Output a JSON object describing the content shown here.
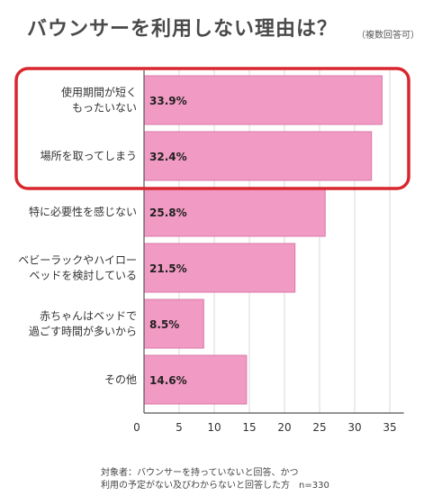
{
  "title": "バウンサーを利用しない理由は？",
  "subtitle": "（複数回答可）",
  "chart_data": {
    "type": "bar",
    "orientation": "horizontal",
    "categories": [
      [
        "使用期間が短く",
        "もったいない"
      ],
      [
        "場所を取ってしまう"
      ],
      [
        "特に必要性を感じない"
      ],
      [
        "ベビーラックやハイロー",
        "ベッドを検討している"
      ],
      [
        "赤ちゃんはベッドで",
        "過ごす時間が多いから"
      ],
      [
        "その他"
      ]
    ],
    "values": [
      33.9,
      32.4,
      25.8,
      21.5,
      8.5,
      14.6
    ],
    "value_labels": [
      "33.9%",
      "32.4%",
      "25.8%",
      "21.5%",
      "8.5%",
      "14.6%"
    ],
    "x_ticks": [
      "0",
      "5",
      "10",
      "15",
      "20",
      "25",
      "30",
      "35"
    ],
    "xlim": [
      0,
      37
    ],
    "grid": true,
    "bar_color": "#f19ac3",
    "bar_border_color": "#d97aa9",
    "highlight_color": "#d9262e",
    "highlighted_categories": [
      0,
      1
    ]
  },
  "footnote": {
    "line1": "対象者：バウンサーを持っていないと回答、かつ",
    "line2": "利用の予定がない及びわからないと回答した方",
    "n": "n=330"
  }
}
